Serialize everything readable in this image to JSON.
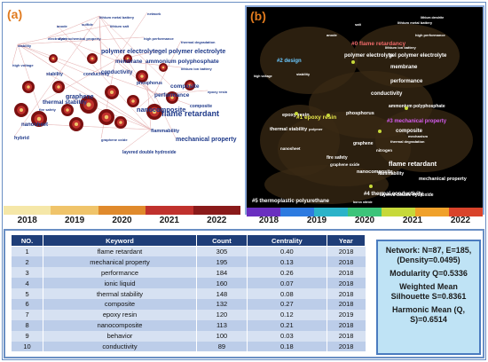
{
  "panel_a": {
    "letter": "(a)",
    "timeline_colors": [
      "#f5e7a8",
      "#f0c46a",
      "#e08a2c",
      "#c0312d",
      "#8a1a1a"
    ],
    "labels": [
      "lithium metal battery",
      "network",
      "anode",
      "lithium salt",
      "sulfide",
      "electrolyte",
      "electrochemical property",
      "stability",
      "high performance",
      "thermal degradation",
      "polymer electrolyte",
      "gel polymer electrolyte",
      "ammonium polyphosphate",
      "high voltage",
      "membrane",
      "conductivity",
      "lithium ion battery",
      "stability",
      "conductivity",
      "phosphorus",
      "composite",
      "performance",
      "graphene",
      "fire safety",
      "nanocomposite",
      "flame retardant",
      "thermal stability",
      "nanosheet",
      "flammability",
      "mechanical property",
      "hybrid",
      "graphene oxide",
      "layered double hydroxide",
      "composite",
      "epoxy resin"
    ]
  },
  "panel_b": {
    "letter": "(b)",
    "timeline_colors": [
      "#6a2fc0",
      "#2d7be0",
      "#2bb3c9",
      "#3cc47a",
      "#c7d93a",
      "#f0a12a",
      "#d9432a"
    ],
    "labels": [
      "lithium dendrite",
      "lithium metal battery",
      "salt",
      "high performance",
      "anode",
      "lithium ion battery",
      "polymer electrolyte",
      "gel polymer electrolyte",
      "membrane",
      "high voltage",
      "stability",
      "performance",
      "conductivity",
      "ammonium polyphosphate",
      "epoxy resin",
      "phosphorus",
      "thermal stability",
      "polymer",
      "composite",
      "mechanism",
      "thermal degradation",
      "graphene",
      "nitrogen",
      "nanosheet",
      "fire safety",
      "flame retardant",
      "graphene oxide",
      "nanocomposite",
      "flammability",
      "mechanical property",
      "layered double hydroxide",
      "boron nitride"
    ],
    "clusters": [
      "#0 flame retardancy",
      "#2 design",
      "#1 epoxy resin",
      "#3 mechanical property",
      "#5 thermoplastic polyurethane",
      "#4 thermal conductivity"
    ]
  },
  "years": [
    "2018",
    "2019",
    "2020",
    "2021",
    "2022"
  ],
  "table": {
    "headers": [
      "NO.",
      "Keyword",
      "Count",
      "Centrality",
      "Year"
    ],
    "rows": [
      [
        "1",
        "flame retardant",
        "305",
        "0.40",
        "2018"
      ],
      [
        "2",
        "mechanical property",
        "195",
        "0.13",
        "2018"
      ],
      [
        "3",
        "performance",
        "184",
        "0.26",
        "2018"
      ],
      [
        "4",
        "ionic liquid",
        "160",
        "0.07",
        "2018"
      ],
      [
        "5",
        "thermal stability",
        "148",
        "0.08",
        "2018"
      ],
      [
        "6",
        "composite",
        "132",
        "0.27",
        "2018"
      ],
      [
        "7",
        "epoxy resin",
        "120",
        "0.12",
        "2019"
      ],
      [
        "8",
        "nanocomposite",
        "113",
        "0.21",
        "2018"
      ],
      [
        "9",
        "behavior",
        "100",
        "0.03",
        "2018"
      ],
      [
        "10",
        "conductivity",
        "89",
        "0.18",
        "2018"
      ]
    ]
  },
  "stats": {
    "network": "Network: N=87, E=185, (Density=0.0495)",
    "modularity": "Modularity Q=0.5336",
    "silhouette": "Weighted Mean Silhouette S=0.8361",
    "harmonic": "Harmonic Mean (Q, S)=0.6514"
  }
}
